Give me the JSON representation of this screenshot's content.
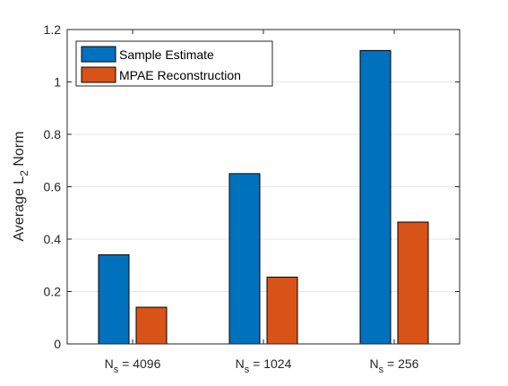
{
  "chart_data": {
    "type": "bar",
    "categories": [
      {
        "main": "N",
        "sub": "s",
        "rest": " = 4096"
      },
      {
        "main": "N",
        "sub": "s",
        "rest": " = 1024"
      },
      {
        "main": "N",
        "sub": "s",
        "rest": " = 256"
      }
    ],
    "series": [
      {
        "name": "Sample Estimate",
        "color": "#0072BD",
        "values": [
          0.34,
          0.65,
          1.12
        ]
      },
      {
        "name": "MPAE Reconstruction",
        "color": "#D95319",
        "values": [
          0.14,
          0.255,
          0.465
        ]
      }
    ],
    "ylabel": {
      "main": "Average L",
      "sub": "2",
      "rest": " Norm"
    },
    "xlabel": "",
    "title": "",
    "ylim": [
      0,
      1.2
    ],
    "yticks": [
      0,
      0.2,
      0.4,
      0.6,
      0.8,
      1,
      1.2
    ],
    "ytick_labels": [
      "0",
      "0.2",
      "0.4",
      "0.6",
      "0.8",
      "1",
      "1.2"
    ],
    "grid": "y-major",
    "legend_location": "top-left"
  }
}
